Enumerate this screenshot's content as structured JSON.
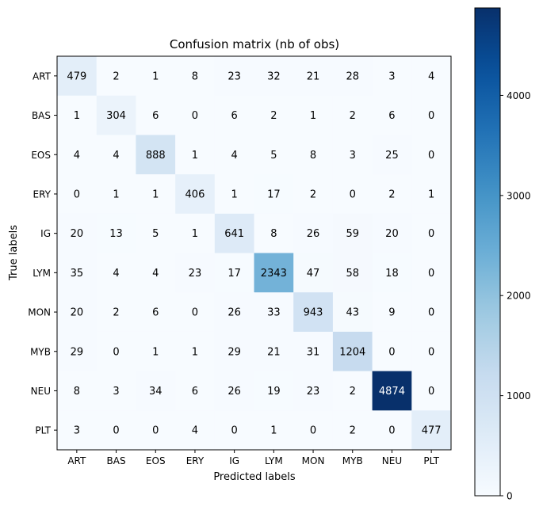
{
  "chart_data": {
    "type": "heatmap",
    "title": "Confusion matrix (nb of obs)",
    "xlabel": "Predicted labels",
    "ylabel": "True labels",
    "x_categories": [
      "ART",
      "BAS",
      "EOS",
      "ERY",
      "IG",
      "LYM",
      "MON",
      "MYB",
      "NEU",
      "PLT"
    ],
    "y_categories": [
      "ART",
      "BAS",
      "EOS",
      "ERY",
      "IG",
      "LYM",
      "MON",
      "MYB",
      "NEU",
      "PLT"
    ],
    "values": [
      [
        479,
        2,
        1,
        8,
        23,
        32,
        21,
        28,
        3,
        4
      ],
      [
        1,
        304,
        6,
        0,
        6,
        2,
        1,
        2,
        6,
        0
      ],
      [
        4,
        4,
        888,
        1,
        4,
        5,
        8,
        3,
        25,
        0
      ],
      [
        0,
        1,
        1,
        406,
        1,
        17,
        2,
        0,
        2,
        1
      ],
      [
        20,
        13,
        5,
        1,
        641,
        8,
        26,
        59,
        20,
        0
      ],
      [
        35,
        4,
        4,
        23,
        17,
        2343,
        47,
        58,
        18,
        0
      ],
      [
        20,
        2,
        6,
        0,
        26,
        33,
        943,
        43,
        9,
        0
      ],
      [
        29,
        0,
        1,
        1,
        29,
        21,
        31,
        1204,
        0,
        0
      ],
      [
        8,
        3,
        34,
        6,
        26,
        19,
        23,
        2,
        4874,
        0
      ],
      [
        3,
        0,
        0,
        4,
        0,
        1,
        0,
        2,
        0,
        477
      ]
    ],
    "colormap": "Blues",
    "colorbar": {
      "range": [
        0,
        4874
      ],
      "ticks": [
        0,
        1000,
        2000,
        3000,
        4000
      ],
      "tick_labels": [
        "0",
        "1000",
        "2000",
        "3000",
        "4000"
      ]
    }
  }
}
